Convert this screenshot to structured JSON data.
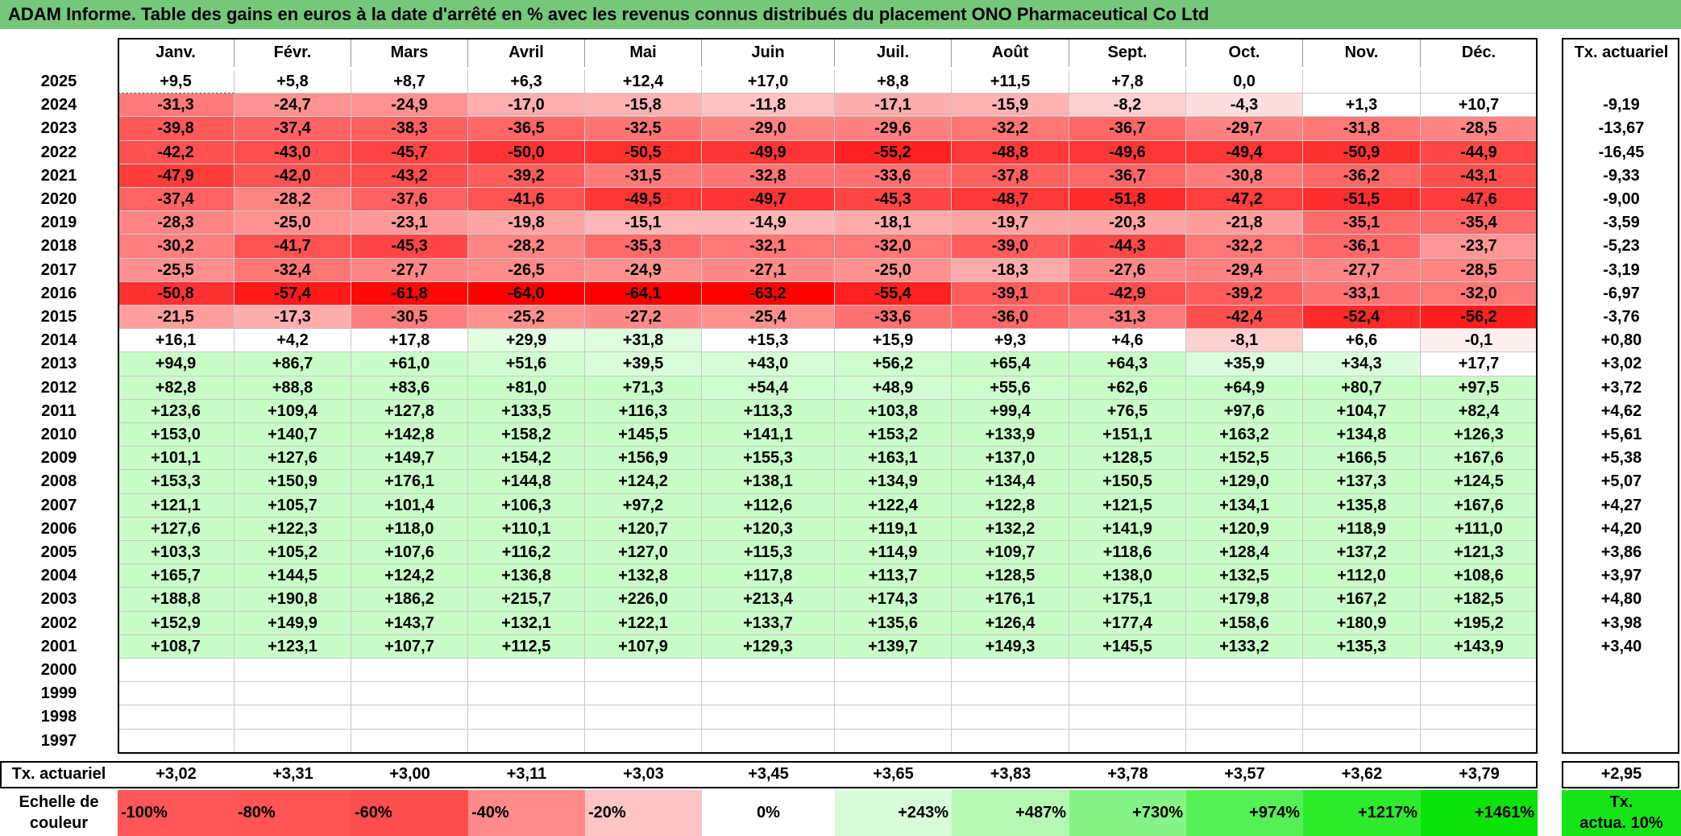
{
  "title": "ADAM Informe. Table des gains en euros à la date d'arrêté en % avec les revenus connus distribués du placement ONO Pharmaceutical Co Ltd",
  "months": [
    "Janv.",
    "Févr.",
    "Mars",
    "Avril",
    "Mai",
    "Juin",
    "Juil.",
    "Août",
    "Sept.",
    "Oct.",
    "Nov.",
    "Déc."
  ],
  "annual_header": "Tx. actuariel",
  "rows": [
    {
      "year": "2025",
      "values": [
        "+9,5",
        "+5,8",
        "+8,7",
        "+6,3",
        "+12,4",
        "+17,0",
        "+8,8",
        "+11,5",
        "+7,8",
        "0,0",
        "",
        ""
      ],
      "annual": ""
    },
    {
      "year": "2024",
      "values": [
        "-31,3",
        "-24,7",
        "-24,9",
        "-17,0",
        "-15,8",
        "-11,8",
        "-17,1",
        "-15,9",
        "-8,2",
        "-4,3",
        "+1,3",
        "+10,7"
      ],
      "annual": "-9,19"
    },
    {
      "year": "2023",
      "values": [
        "-39,8",
        "-37,4",
        "-38,3",
        "-36,5",
        "-32,5",
        "-29,0",
        "-29,6",
        "-32,2",
        "-36,7",
        "-29,7",
        "-31,8",
        "-28,5"
      ],
      "annual": "-13,67"
    },
    {
      "year": "2022",
      "values": [
        "-42,2",
        "-43,0",
        "-45,7",
        "-50,0",
        "-50,5",
        "-49,9",
        "-55,2",
        "-48,8",
        "-49,6",
        "-49,4",
        "-50,9",
        "-44,9"
      ],
      "annual": "-16,45"
    },
    {
      "year": "2021",
      "values": [
        "-47,9",
        "-42,0",
        "-43,2",
        "-39,2",
        "-31,5",
        "-32,8",
        "-33,6",
        "-37,8",
        "-36,7",
        "-30,8",
        "-36,2",
        "-43,1"
      ],
      "annual": "-9,33"
    },
    {
      "year": "2020",
      "values": [
        "-37,4",
        "-28,2",
        "-37,6",
        "-41,6",
        "-49,5",
        "-49,7",
        "-45,3",
        "-48,7",
        "-51,8",
        "-47,2",
        "-51,5",
        "-47,6"
      ],
      "annual": "-9,00"
    },
    {
      "year": "2019",
      "values": [
        "-28,3",
        "-25,0",
        "-23,1",
        "-19,8",
        "-15,1",
        "-14,9",
        "-18,1",
        "-19,7",
        "-20,3",
        "-21,8",
        "-35,1",
        "-35,4"
      ],
      "annual": "-3,59"
    },
    {
      "year": "2018",
      "values": [
        "-30,2",
        "-41,7",
        "-45,3",
        "-28,2",
        "-35,3",
        "-32,1",
        "-32,0",
        "-39,0",
        "-44,3",
        "-32,2",
        "-36,1",
        "-23,7"
      ],
      "annual": "-5,23"
    },
    {
      "year": "2017",
      "values": [
        "-25,5",
        "-32,4",
        "-27,7",
        "-26,5",
        "-24,9",
        "-27,1",
        "-25,0",
        "-18,3",
        "-27,6",
        "-29,4",
        "-27,7",
        "-28,5"
      ],
      "annual": "-3,19"
    },
    {
      "year": "2016",
      "values": [
        "-50,8",
        "-57,4",
        "-61,8",
        "-64,0",
        "-64,1",
        "-63,2",
        "-55,4",
        "-39,1",
        "-42,9",
        "-39,2",
        "-33,1",
        "-32,0"
      ],
      "annual": "-6,97"
    },
    {
      "year": "2015",
      "values": [
        "-21,5",
        "-17,3",
        "-30,5",
        "-25,2",
        "-27,2",
        "-25,4",
        "-33,6",
        "-36,0",
        "-31,3",
        "-42,4",
        "-52,4",
        "-56,2"
      ],
      "annual": "-3,76"
    },
    {
      "year": "2014",
      "values": [
        "+16,1",
        "+4,2",
        "+17,8",
        "+29,9",
        "+31,8",
        "+15,3",
        "+15,9",
        "+9,3",
        "+4,6",
        "-8,1",
        "+6,6",
        "-0,1"
      ],
      "annual": "+0,80"
    },
    {
      "year": "2013",
      "values": [
        "+94,9",
        "+86,7",
        "+61,0",
        "+51,6",
        "+39,5",
        "+43,0",
        "+56,2",
        "+65,4",
        "+64,3",
        "+35,9",
        "+34,3",
        "+17,7"
      ],
      "annual": "+3,02"
    },
    {
      "year": "2012",
      "values": [
        "+82,8",
        "+88,8",
        "+83,6",
        "+81,0",
        "+71,3",
        "+54,4",
        "+48,9",
        "+55,6",
        "+62,6",
        "+64,9",
        "+80,7",
        "+97,5"
      ],
      "annual": "+3,72"
    },
    {
      "year": "2011",
      "values": [
        "+123,6",
        "+109,4",
        "+127,8",
        "+133,5",
        "+116,3",
        "+113,3",
        "+103,8",
        "+99,4",
        "+76,5",
        "+97,6",
        "+104,7",
        "+82,4"
      ],
      "annual": "+4,62"
    },
    {
      "year": "2010",
      "values": [
        "+153,0",
        "+140,7",
        "+142,8",
        "+158,2",
        "+145,5",
        "+141,1",
        "+153,2",
        "+133,9",
        "+151,1",
        "+163,2",
        "+134,8",
        "+126,3"
      ],
      "annual": "+5,61"
    },
    {
      "year": "2009",
      "values": [
        "+101,1",
        "+127,6",
        "+149,7",
        "+154,2",
        "+156,9",
        "+155,3",
        "+163,1",
        "+137,0",
        "+128,5",
        "+152,5",
        "+166,5",
        "+167,6"
      ],
      "annual": "+5,38"
    },
    {
      "year": "2008",
      "values": [
        "+153,3",
        "+150,9",
        "+176,1",
        "+144,8",
        "+124,2",
        "+138,1",
        "+134,9",
        "+134,4",
        "+150,5",
        "+129,0",
        "+137,3",
        "+124,5"
      ],
      "annual": "+5,07"
    },
    {
      "year": "2007",
      "values": [
        "+121,1",
        "+105,7",
        "+101,4",
        "+106,3",
        "+97,2",
        "+112,6",
        "+122,4",
        "+122,8",
        "+121,5",
        "+134,1",
        "+135,8",
        "+167,6"
      ],
      "annual": "+4,27"
    },
    {
      "year": "2006",
      "values": [
        "+127,6",
        "+122,3",
        "+118,0",
        "+110,1",
        "+120,7",
        "+120,3",
        "+119,1",
        "+132,2",
        "+141,9",
        "+120,9",
        "+118,9",
        "+111,0"
      ],
      "annual": "+4,20"
    },
    {
      "year": "2005",
      "values": [
        "+103,3",
        "+105,2",
        "+107,6",
        "+116,2",
        "+127,0",
        "+115,3",
        "+114,9",
        "+109,7",
        "+118,6",
        "+128,4",
        "+137,2",
        "+121,3"
      ],
      "annual": "+3,86"
    },
    {
      "year": "2004",
      "values": [
        "+165,7",
        "+144,5",
        "+124,2",
        "+136,8",
        "+132,8",
        "+117,8",
        "+113,7",
        "+128,5",
        "+138,0",
        "+132,5",
        "+112,0",
        "+108,6"
      ],
      "annual": "+3,97"
    },
    {
      "year": "2003",
      "values": [
        "+188,8",
        "+190,8",
        "+186,2",
        "+215,7",
        "+226,0",
        "+213,4",
        "+174,3",
        "+176,1",
        "+175,1",
        "+179,8",
        "+167,2",
        "+182,5"
      ],
      "annual": "+4,80"
    },
    {
      "year": "2002",
      "values": [
        "+152,9",
        "+149,9",
        "+143,7",
        "+132,1",
        "+122,1",
        "+133,7",
        "+135,6",
        "+126,4",
        "+177,4",
        "+158,6",
        "+180,9",
        "+195,2"
      ],
      "annual": "+3,98"
    },
    {
      "year": "2001",
      "values": [
        "+108,7",
        "+123,1",
        "+107,7",
        "+112,5",
        "+107,9",
        "+129,3",
        "+139,7",
        "+149,3",
        "+145,5",
        "+133,2",
        "+135,3",
        "+143,9"
      ],
      "annual": "+3,40"
    },
    {
      "year": "2000",
      "values": [
        "",
        "",
        "",
        "",
        "",
        "",
        "",
        "",
        "",
        "",
        "",
        ""
      ],
      "annual": ""
    },
    {
      "year": "1999",
      "values": [
        "",
        "",
        "",
        "",
        "",
        "",
        "",
        "",
        "",
        "",
        "",
        ""
      ],
      "annual": ""
    },
    {
      "year": "1998",
      "values": [
        "",
        "",
        "",
        "",
        "",
        "",
        "",
        "",
        "",
        "",
        "",
        ""
      ],
      "annual": ""
    },
    {
      "year": "1997",
      "values": [
        "",
        "",
        "",
        "",
        "",
        "",
        "",
        "",
        "",
        "",
        "",
        ""
      ],
      "annual": ""
    }
  ],
  "footer": {
    "label": "Tx. actuariel",
    "values": [
      "+3,02",
      "+3,31",
      "+3,00",
      "+3,11",
      "+3,03",
      "+3,45",
      "+3,65",
      "+3,83",
      "+3,78",
      "+3,57",
      "+3,62",
      "+3,79"
    ],
    "annual": "+2,95"
  },
  "scale": {
    "label_line1": "Echelle de",
    "label_line2": "couleur",
    "items": [
      {
        "text": "-100%",
        "color": "#ff5757"
      },
      {
        "text": "-80%",
        "color": "#ff5555"
      },
      {
        "text": "-60%",
        "color": "#fe4d4d"
      },
      {
        "text": "-40%",
        "color": "#ff8a8a"
      },
      {
        "text": "-20%",
        "color": "#ffc4c4"
      },
      {
        "text": "0%",
        "color": "#ffffff"
      },
      {
        "text": "+243%",
        "color": "#d8fbd8"
      },
      {
        "text": "+487%",
        "color": "#b4f8b4"
      },
      {
        "text": "+730%",
        "color": "#86f386"
      },
      {
        "text": "+974%",
        "color": "#55f055"
      },
      {
        "text": "+1217%",
        "color": "#2eeb2e"
      },
      {
        "text": "+1461%",
        "color": "#0de20d"
      }
    ],
    "annual_line1": "Tx.",
    "annual_line2": "actua. 10%",
    "annual_color": "#17e417"
  }
}
